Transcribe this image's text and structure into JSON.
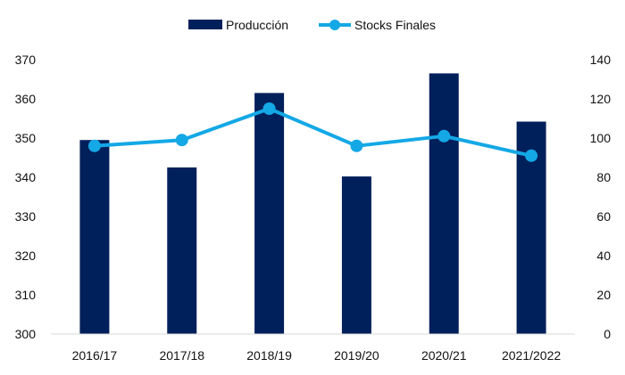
{
  "chart_data": {
    "type": "bar",
    "categories": [
      "2016/17",
      "2017/18",
      "2018/19",
      "2019/20",
      "2020/21",
      "2021/2022"
    ],
    "series": [
      {
        "name": "Producción",
        "type": "bar",
        "axis": "left",
        "color": "#00205b",
        "values": [
          349.5,
          342.5,
          361.5,
          340.2,
          366.5,
          354.2
        ]
      },
      {
        "name": "Stocks Finales",
        "type": "line",
        "axis": "right",
        "color": "#14a8e6",
        "values": [
          96,
          99,
          115,
          96,
          101,
          91
        ]
      }
    ],
    "y_left": {
      "lim": [
        300,
        370
      ],
      "ticks": [
        "300",
        "310",
        "320",
        "330",
        "340",
        "350",
        "360",
        "370"
      ]
    },
    "y_right": {
      "lim": [
        0,
        140
      ],
      "ticks": [
        "0",
        "20",
        "40",
        "60",
        "80",
        "100",
        "120",
        "140"
      ]
    },
    "grid": false,
    "legend": "top-center"
  }
}
